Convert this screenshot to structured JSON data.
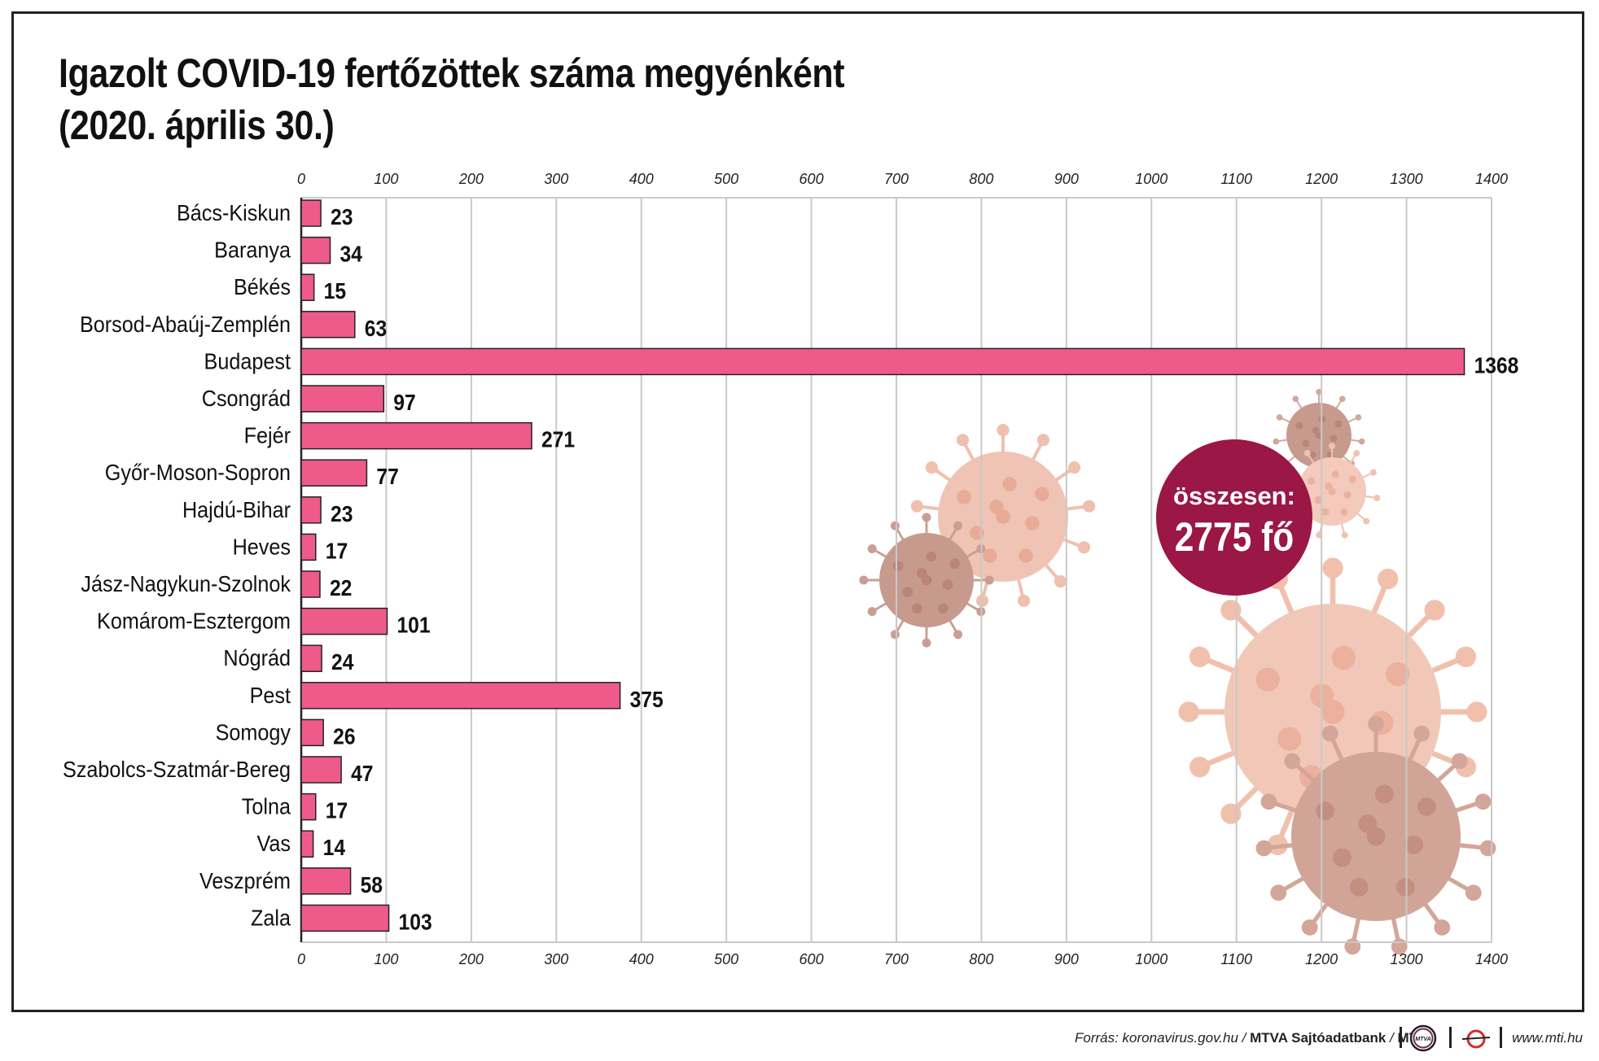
{
  "title_line1": "Igazolt COVID-19 fertőzöttek száma megyénként",
  "title_line2": "(2020. április 30.)",
  "chart_data": {
    "type": "bar",
    "orientation": "horizontal",
    "title": "Igazolt COVID-19 fertőzöttek száma megyénként (2020. április 30.)",
    "xlim": [
      0,
      1400
    ],
    "xticks": [
      0,
      100,
      200,
      300,
      400,
      500,
      600,
      700,
      800,
      900,
      1000,
      1100,
      1200,
      1300,
      1400
    ],
    "categories": [
      "Bács-Kiskun",
      "Baranya",
      "Békés",
      "Borsod-Abaúj-Zemplén",
      "Budapest",
      "Csongrád",
      "Fejér",
      "Győr-Moson-Sopron",
      "Hajdú-Bihar",
      "Heves",
      "Jász-Nagykun-Szolnok",
      "Komárom-Esztergom",
      "Nógrád",
      "Pest",
      "Somogy",
      "Szabolcs-Szatmár-Bereg",
      "Tolna",
      "Vas",
      "Veszprém",
      "Zala"
    ],
    "values": [
      23,
      34,
      15,
      63,
      1368,
      97,
      271,
      77,
      23,
      17,
      22,
      101,
      24,
      375,
      26,
      47,
      17,
      14,
      58,
      103
    ],
    "grid": true,
    "bar_color": "#ee5b8b"
  },
  "total": {
    "label": "összesen:",
    "value": "2775 fő",
    "color": "#9a1746"
  },
  "footer": {
    "source_prefix": "Forrás: koronavirus.gov.hu / ",
    "source_agency": "MTVA Sajtóadatbank",
    "source_sep": " / ",
    "source_suffix": "MTI",
    "logo1_text": "MTVA",
    "site": "www.mti.hu"
  },
  "virus_icons": [
    "virus-icon-large",
    "virus-icon-medium",
    "virus-icon-small",
    "virus-icon-tiny"
  ]
}
